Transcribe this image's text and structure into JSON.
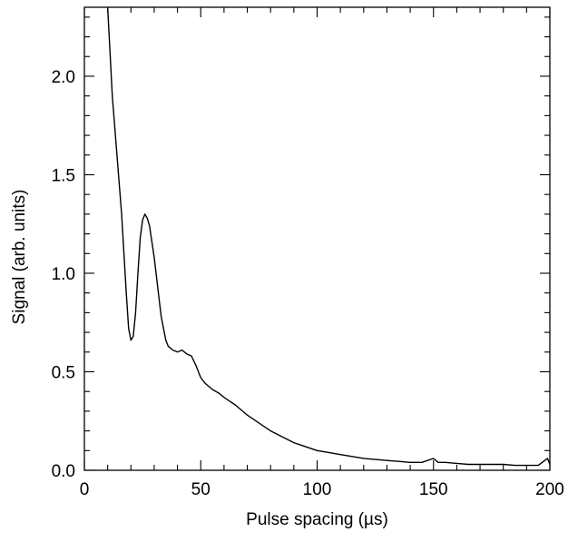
{
  "chart_data": {
    "type": "line",
    "title": "",
    "xlabel": "Pulse spacing (µs)",
    "ylabel": "Signal (arb. units)",
    "xlim": [
      0,
      200
    ],
    "ylim": [
      0,
      2.35
    ],
    "x_ticks": [
      0,
      50,
      100,
      150,
      200
    ],
    "x_tick_labels": [
      "0",
      "50",
      "100",
      "150",
      "200"
    ],
    "y_ticks": [
      0.0,
      0.5,
      1.0,
      1.5,
      2.0
    ],
    "y_tick_labels": [
      "0.0",
      "0.5",
      "1.0",
      "1.5",
      "2.0"
    ],
    "x_minor_step": 10,
    "y_minor_step": 0.1,
    "grid": false,
    "legend": "none",
    "series": [
      {
        "color": "#000000",
        "x": [
          10,
          12,
          14,
          16,
          18,
          19,
          20,
          21,
          22,
          23,
          24,
          25,
          26,
          27,
          28,
          29,
          30,
          31,
          32,
          33,
          34,
          35,
          36,
          38,
          40,
          42,
          44,
          46,
          48,
          50,
          52,
          55,
          58,
          60,
          65,
          70,
          75,
          80,
          85,
          90,
          95,
          100,
          105,
          110,
          115,
          120,
          125,
          130,
          135,
          140,
          145,
          150,
          152,
          155,
          160,
          165,
          170,
          175,
          180,
          185,
          190,
          195,
          199,
          200
        ],
        "y": [
          2.38,
          1.9,
          1.6,
          1.3,
          0.9,
          0.72,
          0.66,
          0.68,
          0.8,
          1.0,
          1.18,
          1.27,
          1.3,
          1.28,
          1.24,
          1.16,
          1.08,
          0.98,
          0.88,
          0.78,
          0.72,
          0.66,
          0.63,
          0.61,
          0.6,
          0.61,
          0.59,
          0.58,
          0.53,
          0.47,
          0.44,
          0.41,
          0.39,
          0.37,
          0.33,
          0.28,
          0.24,
          0.2,
          0.17,
          0.14,
          0.12,
          0.1,
          0.09,
          0.08,
          0.07,
          0.06,
          0.055,
          0.05,
          0.045,
          0.04,
          0.04,
          0.06,
          0.04,
          0.04,
          0.035,
          0.03,
          0.03,
          0.03,
          0.03,
          0.025,
          0.025,
          0.025,
          0.06,
          0.03
        ]
      }
    ]
  }
}
